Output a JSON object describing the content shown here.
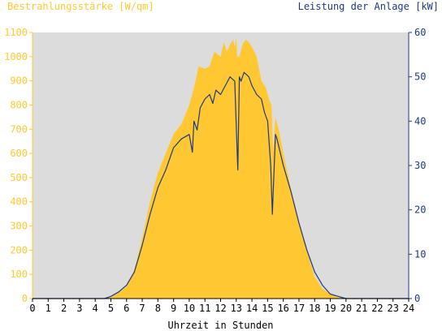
{
  "chart_data": {
    "type": "area",
    "left_axis_title": "Bestrahlungsstärke [W/qm]",
    "right_axis_title": "Leistung der Anlage [kW]",
    "xlabel": "Uhrzeit in Stunden",
    "xlim": [
      0,
      24
    ],
    "ylim_left": [
      0,
      1100
    ],
    "ylim_right": [
      0,
      60
    ],
    "grid": false,
    "x_ticks": [
      "0",
      "1",
      "2",
      "3",
      "4",
      "5",
      "6",
      "7",
      "8",
      "9",
      "10",
      "11",
      "12",
      "13",
      "14",
      "15",
      "16",
      "17",
      "18",
      "19",
      "20",
      "21",
      "22",
      "23",
      "24"
    ],
    "left_ticks": [
      "0",
      "100",
      "200",
      "300",
      "400",
      "500",
      "600",
      "700",
      "800",
      "900",
      "1000",
      "1100"
    ],
    "right_ticks": [
      "0",
      "10",
      "20",
      "30",
      "40",
      "50",
      "60"
    ],
    "colors": {
      "irradiance": "#ffc832",
      "power": "#1f3a7a",
      "plot_bg": "#dcdcdc",
      "left_axis": "#ffc832",
      "right_axis": "#1f3a7a"
    },
    "series": [
      {
        "kind": "area",
        "axis": "left",
        "x": [
          0,
          4.5,
          5,
          5.5,
          6,
          6.5,
          7,
          7.5,
          8,
          8.5,
          9,
          9.5,
          10,
          10.3,
          10.6,
          11,
          11.3,
          11.6,
          12,
          12.2,
          12.4,
          12.6,
          12.8,
          12.9,
          13,
          13.05,
          13.2,
          13.4,
          13.6,
          13.8,
          14,
          14.3,
          14.6,
          14.9,
          15.1,
          15.25,
          15.35,
          15.5,
          15.7,
          16,
          16.5,
          17,
          17.5,
          18,
          18.5,
          19,
          19.5,
          20,
          20.5,
          24
        ],
        "values": [
          0,
          0,
          5,
          25,
          50,
          120,
          250,
          400,
          520,
          600,
          680,
          720,
          800,
          870,
          960,
          950,
          960,
          1020,
          1000,
          1060,
          1020,
          1050,
          1070,
          1040,
          1080,
          1000,
          1000,
          1050,
          1070,
          1060,
          1040,
          1000,
          900,
          870,
          820,
          800,
          600,
          750,
          700,
          600,
          450,
          320,
          200,
          90,
          40,
          20,
          5,
          0,
          0,
          0
        ]
      },
      {
        "kind": "line",
        "axis": "right",
        "x": [
          0,
          4.6,
          5,
          5.5,
          6,
          6.5,
          7,
          7.5,
          8,
          8.5,
          9,
          9.5,
          10,
          10.2,
          10.3,
          10.5,
          10.7,
          11,
          11.3,
          11.5,
          11.7,
          12,
          12.3,
          12.6,
          12.9,
          13,
          13.1,
          13.2,
          13.3,
          13.5,
          13.8,
          14,
          14.3,
          14.6,
          14.8,
          15,
          15.2,
          15.3,
          15.4,
          15.5,
          15.6,
          15.8,
          16,
          16.5,
          17,
          17.5,
          18,
          18.5,
          19,
          19.5,
          20,
          20.5,
          24
        ],
        "values": [
          0,
          0,
          0.5,
          1.5,
          3,
          6,
          12,
          19,
          25,
          29,
          34,
          36,
          37,
          33,
          40,
          38,
          43,
          45,
          46,
          44,
          47,
          46,
          48,
          50,
          49,
          39,
          29,
          50,
          49,
          51,
          50,
          48,
          46,
          45,
          42,
          40,
          30,
          19,
          28,
          37,
          36,
          33,
          30,
          24,
          17,
          11,
          6,
          3,
          1,
          0.5,
          0,
          0,
          0
        ]
      }
    ]
  }
}
